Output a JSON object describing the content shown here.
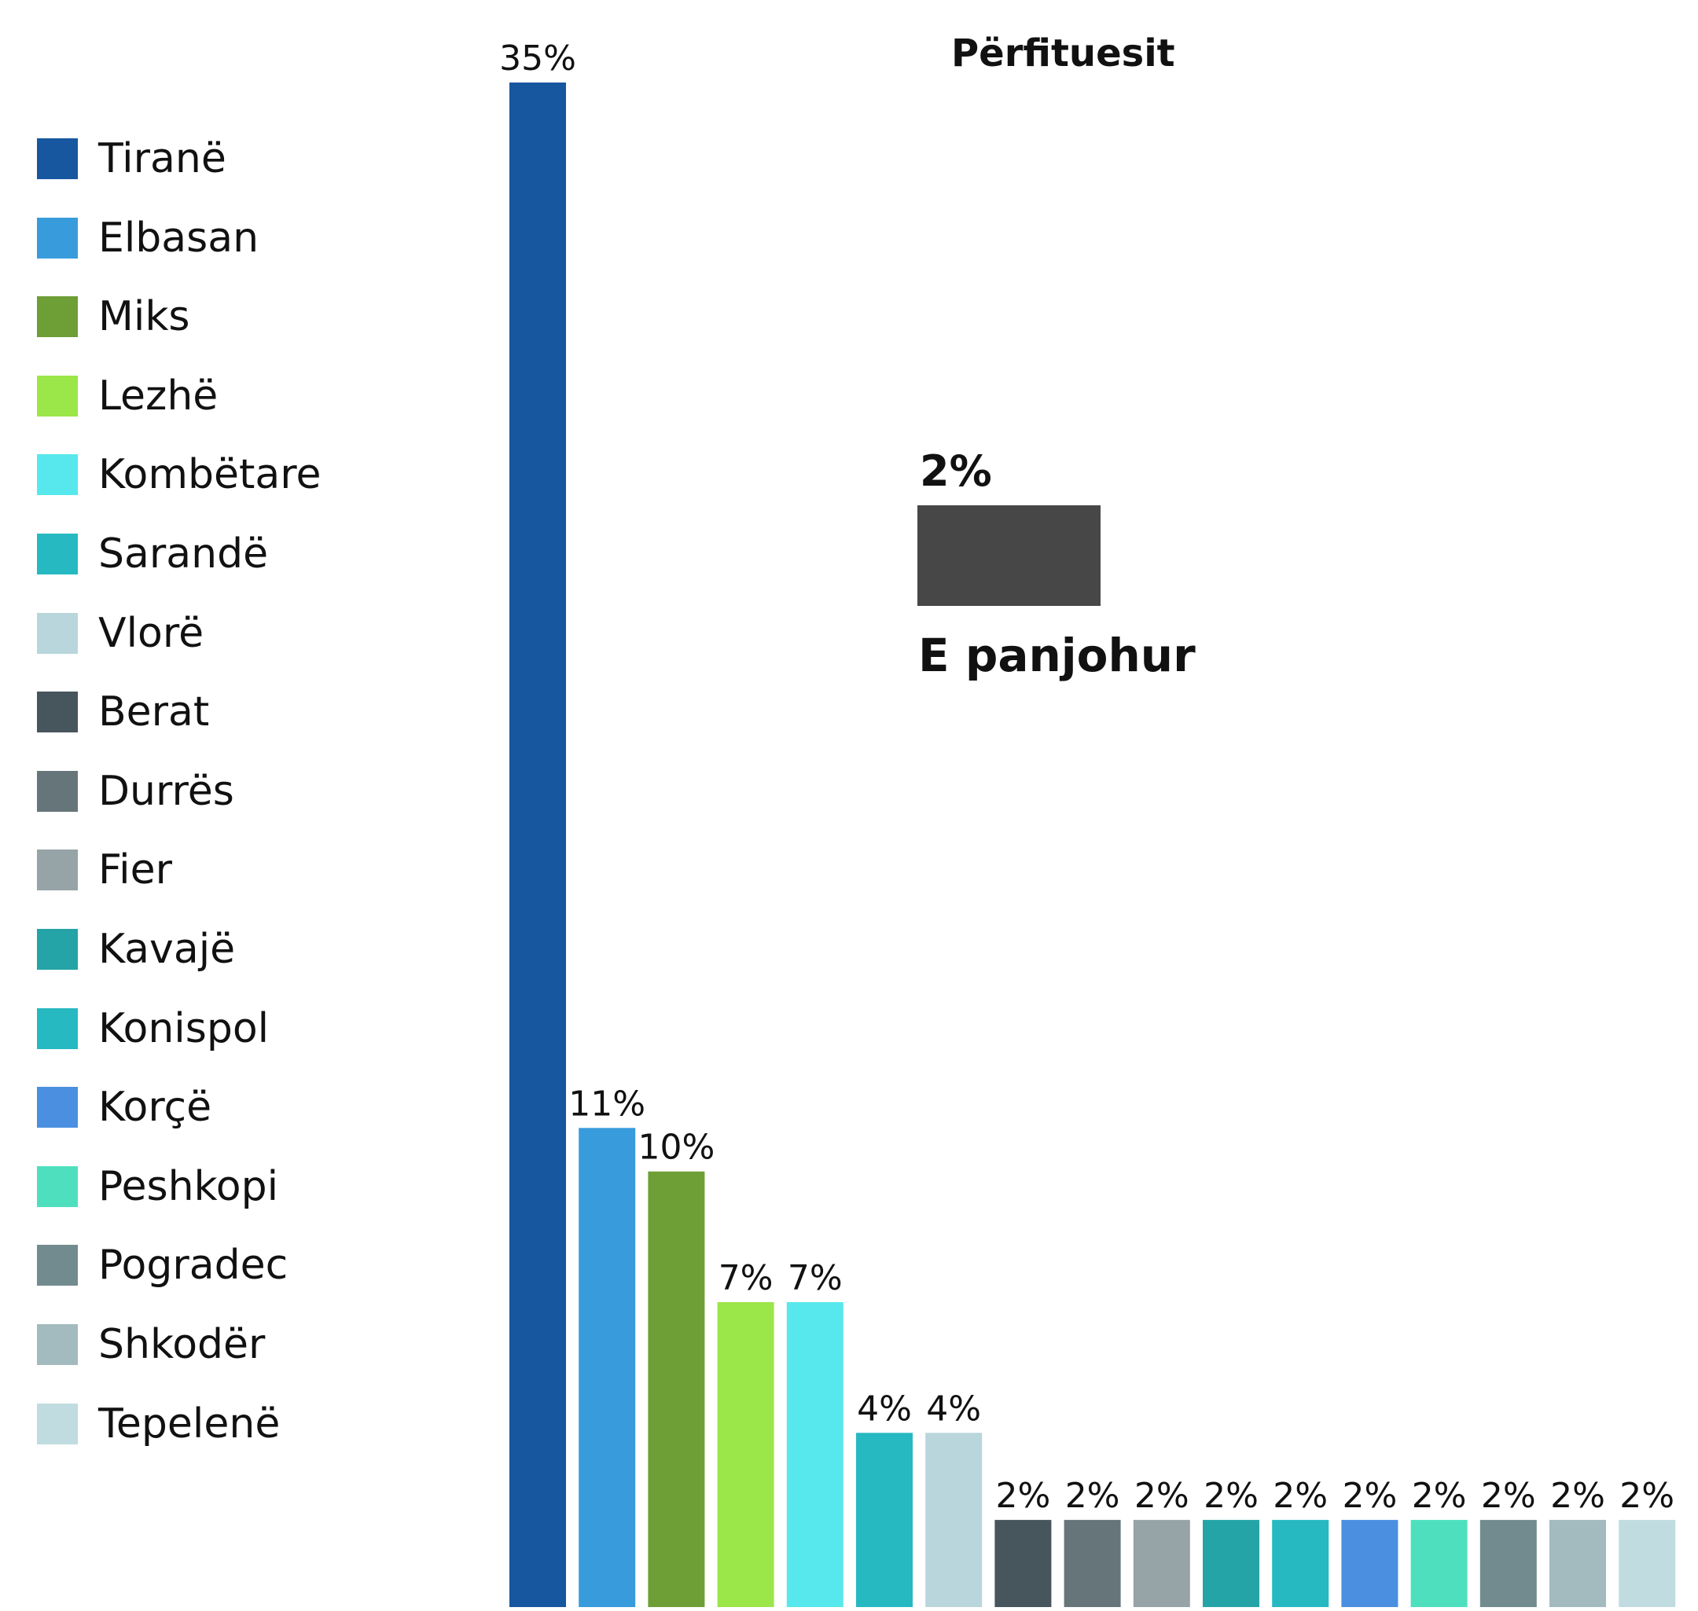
{
  "title": "Përfituesit",
  "legend": [
    {
      "label": "Tiranë",
      "color": "#1757A0"
    },
    {
      "label": "Elbasan",
      "color": "#389CDC"
    },
    {
      "label": "Miks",
      "color": "#6E9E36"
    },
    {
      "label": "Lezhë",
      "color": "#9BE649"
    },
    {
      "label": "Kombëtare",
      "color": "#57E8ED"
    },
    {
      "label": "Sarandë",
      "color": "#26B9C1"
    },
    {
      "label": "Vlorë",
      "color": "#B8D6DB"
    },
    {
      "label": "Berat",
      "color": "#47555C"
    },
    {
      "label": "Durrës",
      "color": "#66757A"
    },
    {
      "label": "Fier",
      "color": "#96A3A7"
    },
    {
      "label": "Kavajë",
      "color": "#24A4A6"
    },
    {
      "label": "Konispol",
      "color": "#26B9C1"
    },
    {
      "label": "Korçë",
      "color": "#4A8FE0"
    },
    {
      "label": "Peshkopi",
      "color": "#4EE0BE"
    },
    {
      "label": "Pogradec",
      "color": "#728B8F"
    },
    {
      "label": "Shkodër",
      "color": "#A3BABE"
    },
    {
      "label": "Tepelenë",
      "color": "#C1DCE0"
    }
  ],
  "unknown": {
    "label": "E panjohur",
    "value_label": "2%",
    "value": 2,
    "color": "#474747"
  },
  "chart_data": {
    "type": "bar",
    "title": "Përfituesit",
    "categories": [
      "Tiranë",
      "Elbasan",
      "Miks",
      "Lezhë",
      "Kombëtare",
      "Sarandë",
      "Vlorë",
      "Berat",
      "Durrës",
      "Fier",
      "Kavajë",
      "Konispol",
      "Korçë",
      "Peshkopi",
      "Pogradec",
      "Shkodër",
      "Tepelenë"
    ],
    "values": [
      35,
      11,
      10,
      7,
      7,
      4,
      4,
      2,
      2,
      2,
      2,
      2,
      2,
      2,
      2,
      2,
      2
    ],
    "value_labels": [
      "35%",
      "11%",
      "10%",
      "7%",
      "7%",
      "4%",
      "4%",
      "2%",
      "2%",
      "2%",
      "2%",
      "2%",
      "2%",
      "2%",
      "2%",
      "2%",
      "2%"
    ],
    "colors": [
      "#1757A0",
      "#389CDC",
      "#6E9E36",
      "#9BE649",
      "#57E8ED",
      "#26B9C1",
      "#B8D6DB",
      "#47555C",
      "#66757A",
      "#96A3A7",
      "#24A4A6",
      "#26B9C1",
      "#4A8FE0",
      "#4EE0BE",
      "#728B8F",
      "#A3BABE",
      "#C1DCE0"
    ],
    "ylim": [
      0,
      35
    ],
    "grid": false,
    "legend_position": "left"
  }
}
